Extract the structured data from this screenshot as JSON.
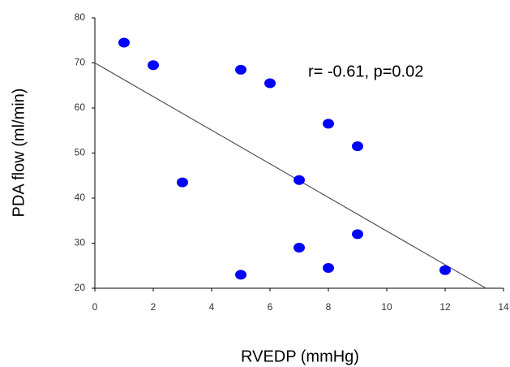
{
  "chart_data": {
    "type": "scatter",
    "x_label": "RVEDP (mmHg)",
    "y_label": "PDA flow (ml/min)",
    "annotation": "r= -0.61, p=0.02",
    "x": [
      1,
      2,
      3,
      5,
      5,
      6,
      7,
      7,
      8,
      8,
      9,
      9,
      12
    ],
    "values": [
      74.5,
      69.5,
      43.5,
      68.5,
      23,
      65.5,
      44,
      29,
      56.5,
      24.5,
      51.5,
      32,
      24
    ],
    "color": "#0000ff",
    "trendline": {
      "x": [
        0,
        13.4
      ],
      "y": [
        70,
        20
      ],
      "color": "#555555"
    },
    "xlim": [
      0,
      14
    ],
    "ylim": [
      20,
      80
    ],
    "xticks": [
      0,
      2,
      4,
      6,
      8,
      10,
      12,
      14
    ],
    "yticks": [
      20,
      30,
      40,
      50,
      60,
      70,
      80
    ],
    "grid": false
  }
}
